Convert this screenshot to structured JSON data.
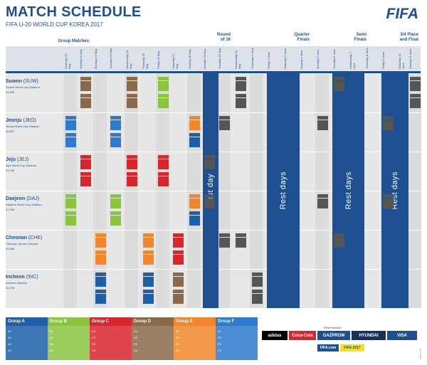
{
  "header": {
    "title": "MATCH SCHEDULE",
    "subtitle": "FIFA U-20 WORLD CUP KOREA 2017",
    "logo": "FIFA"
  },
  "phases": {
    "group": "Group Matches",
    "r16_1": "Round",
    "r16_2": "of 16",
    "qf_1": "Quarter",
    "qf_2": "Finals",
    "sf_1": "Semi",
    "sf_2": "Finals",
    "final_1": "3/4 Place",
    "final_2": "and Final"
  },
  "dates": [
    "Saturday 20 May",
    "Sunday 21 May",
    "Monday 22 May",
    "Tuesday 23 May",
    "Wednesday 24 May",
    "Thursday 25 May",
    "Friday 26 May",
    "Saturday 27 May",
    "Sunday 28 May",
    "Monday 29 May",
    "Tuesday 30 May",
    "Wednesday 31 May",
    "Thursday 1 June",
    "Friday 2 June",
    "Saturday 3 June",
    "Sunday 4 June",
    "Monday 5 June",
    "Tuesday 6 June",
    "Wednesday 7 June",
    "Thursday 8 June",
    "Friday 9 June",
    "Saturday 10 June",
    "Sunday 11 June"
  ],
  "venues": [
    {
      "name": "Suwon",
      "code": "(SUW)",
      "stadium": "Suwon World Cup Stadium",
      "capacity": "43,959"
    },
    {
      "name": "Jeonju",
      "code": "(JEO)",
      "stadium": "Jeonju World Cup Stadium",
      "capacity": "40,837"
    },
    {
      "name": "Jeju",
      "code": "(JEJ)",
      "stadium": "Jeju World Cup Stadium",
      "capacity": "29,790"
    },
    {
      "name": "Daejeon",
      "code": "(DAJ)",
      "stadium": "Daejeon World Cup Stadium",
      "capacity": "41,396"
    },
    {
      "name": "Cheonan",
      "code": "(CHE)",
      "stadium": "Cheonan Sports Complex",
      "capacity": "25,856"
    },
    {
      "name": "Incheon",
      "code": "(INC)",
      "stadium": "Incheon Stadium",
      "capacity": "20,378"
    }
  ],
  "rest_label": "Rest day",
  "rest_label_plural": "Rest days",
  "groups": [
    {
      "name": "Group A",
      "color": "#1d5fa8",
      "teams": [
        "A1",
        "A2",
        "A3",
        "A4"
      ]
    },
    {
      "name": "Group B",
      "color": "#8bc43f",
      "teams": [
        "B1",
        "B2",
        "B3",
        "B4"
      ]
    },
    {
      "name": "Group C",
      "color": "#d9262c",
      "teams": [
        "C1",
        "C2",
        "C3",
        "C4"
      ]
    },
    {
      "name": "Group D",
      "color": "#8a6a4b",
      "teams": [
        "D1",
        "D2",
        "D3",
        "D4"
      ]
    },
    {
      "name": "Group E",
      "color": "#f2862a",
      "teams": [
        "E1",
        "E2",
        "E3",
        "E4"
      ]
    },
    {
      "name": "Group F",
      "color": "#2c7bd0",
      "teams": [
        "F1",
        "F2",
        "F3",
        "F4"
      ]
    }
  ],
  "colors": {
    "ko": "#555555",
    "header_blue": "#1d4f91"
  },
  "sponsors": {
    "title": "FIFA Partners",
    "items": [
      "adidas",
      "Coca-Cola",
      "GAZPROM",
      "HYUNDAI",
      "VISA"
    ],
    "row2": [
      "FIFA.com",
      "FIFA 2017"
    ]
  },
  "footer_code": "03.11.2016"
}
